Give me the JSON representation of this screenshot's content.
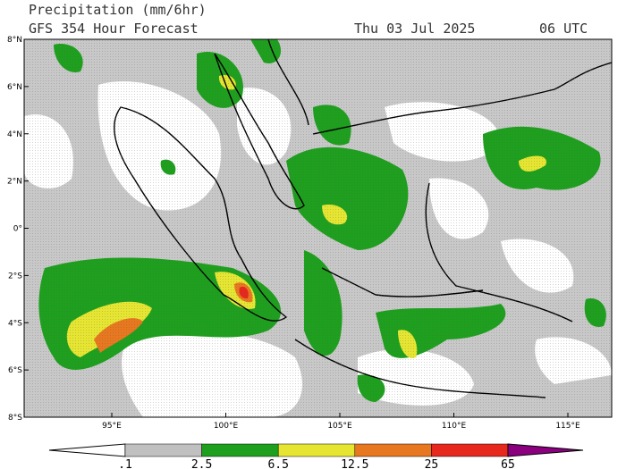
{
  "header": {
    "title": "Precipitation (mm/6hr)",
    "subtitle": "GFS 354 Hour Forecast",
    "date": "Thu 03 Jul 2025",
    "time": "06 UTC"
  },
  "map": {
    "lat_labels": [
      "8°N",
      "6°N",
      "4°N",
      "2°N",
      "0°",
      "2°S",
      "4°S",
      "6°S",
      "8°S"
    ],
    "lon_labels": [
      "95°E",
      "100°E",
      "105°E",
      "110°E",
      "115°E"
    ]
  },
  "colorbar": {
    "labels": [
      ".1",
      "2.5",
      "6.5",
      "12.5",
      "25",
      "65"
    ],
    "colors": [
      "#ffffff",
      "#c0c0c0",
      "#1ea01e",
      "#e6e632",
      "#e87820",
      "#e6281e",
      "#8c0080"
    ]
  }
}
